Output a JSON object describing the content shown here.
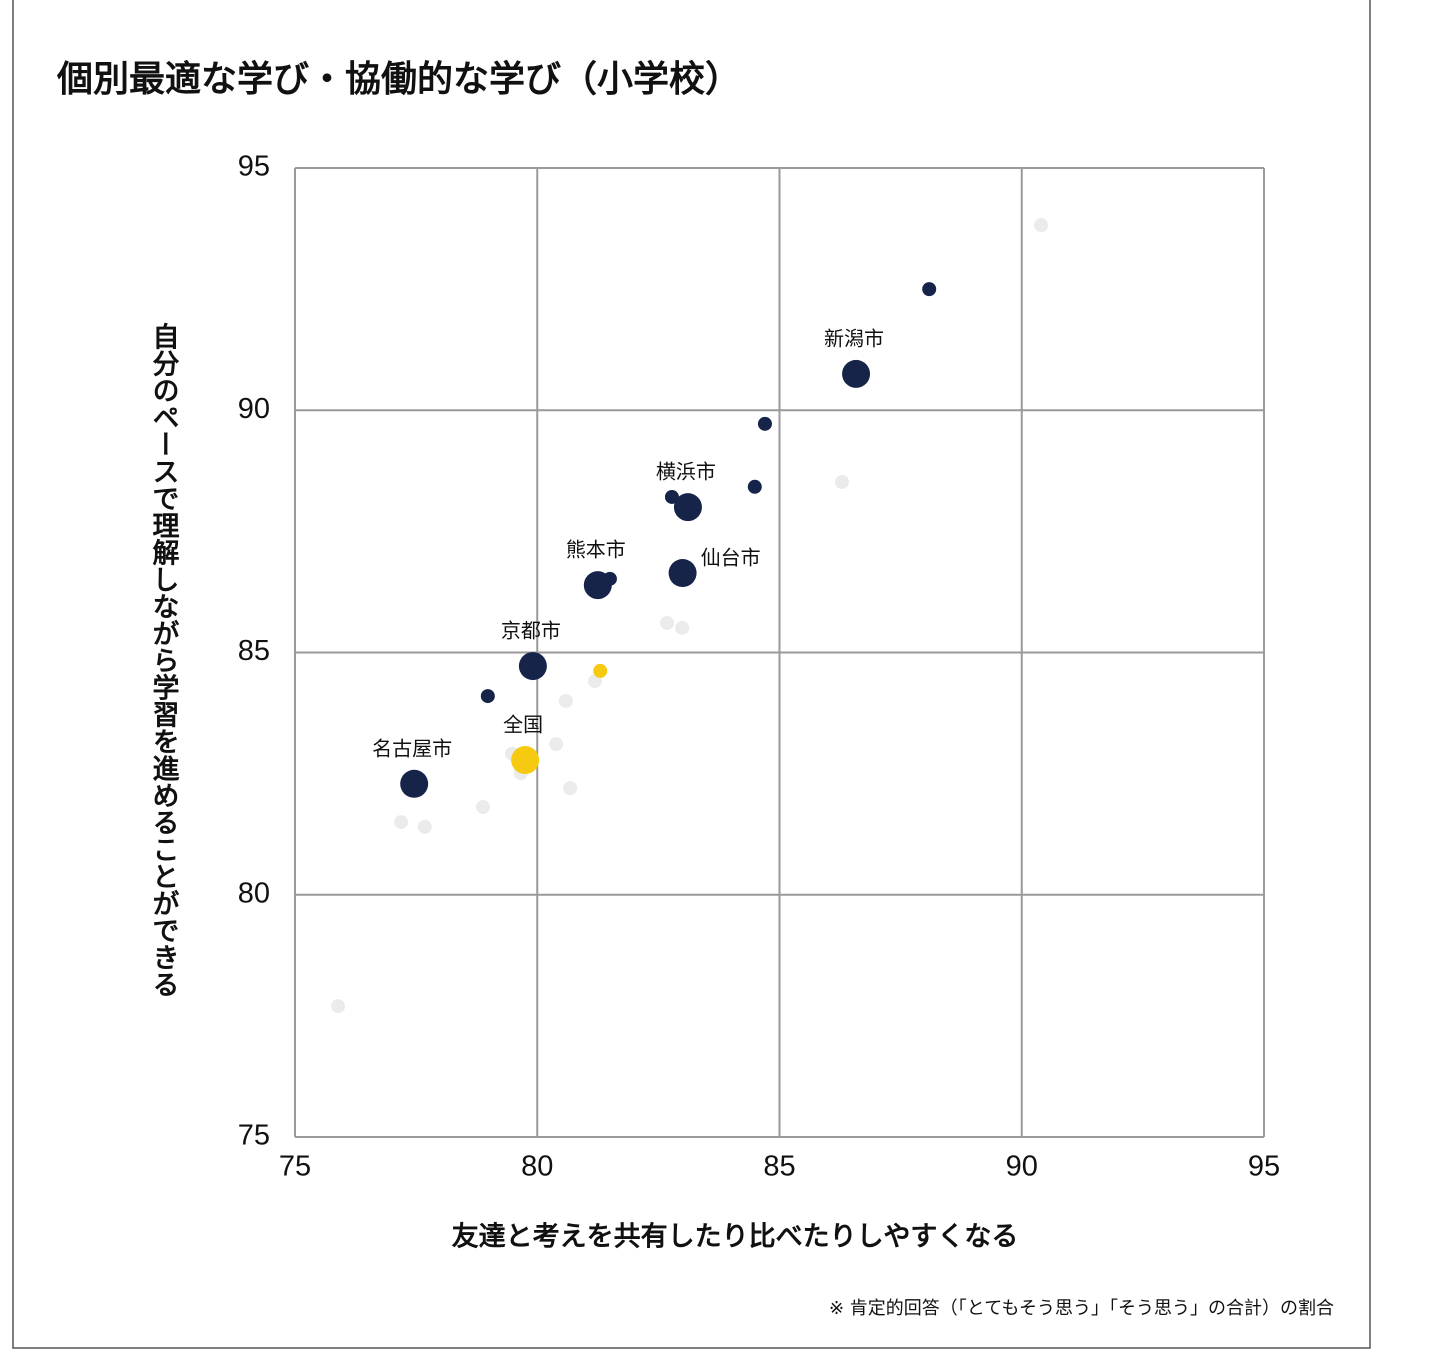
{
  "chart_data": {
    "type": "scatter",
    "title": "個別最適な学び・協働的な学び（小学校）",
    "x_label": "友達と考えを共有したり比べたりしやすくなる",
    "y_label": "自分のペースで理解しながら学習を進めることができる",
    "footnote": "※ 肯定的回答（「とてもそう思う」「そう思う」の合計）の割合",
    "xlim": [
      75,
      95
    ],
    "xticks": [
      75,
      80,
      85,
      90,
      95
    ],
    "ylim": [
      75,
      95
    ],
    "yticks": [
      75,
      80,
      85,
      90,
      95
    ],
    "grid": true,
    "series": [
      {
        "color": "#ebebeb",
        "radius": 7,
        "x": [
          90.4,
          86.29,
          82.68,
          82.99,
          80.59,
          81.19,
          80.39,
          79.48,
          79.66,
          80.68,
          78.88,
          77.19,
          77.68,
          75.89
        ],
        "values": [
          93.82,
          88.52,
          85.61,
          85.51,
          84.0,
          84.41,
          83.11,
          82.91,
          82.51,
          82.2,
          81.81,
          81.5,
          81.4,
          77.7
        ]
      },
      {
        "color": "#16244a",
        "radius": 7,
        "x": [
          88.09,
          84.7,
          84.49,
          82.78,
          81.5,
          78.98
        ],
        "values": [
          92.5,
          89.72,
          88.42,
          88.21,
          86.52,
          84.1
        ]
      },
      {
        "color": "#16244a",
        "radius": 14,
        "x": [
          86.58,
          83.11,
          83.0,
          81.25,
          79.91,
          77.46
        ],
        "values": [
          90.75,
          88.0,
          86.64,
          86.39,
          84.72,
          82.29
        ],
        "labels": [
          "新潟市",
          "横浜市",
          "仙台市",
          "熊本市",
          "京都市",
          "名古屋市"
        ]
      },
      {
        "color": "#f7ca12",
        "radius": 7,
        "x": [
          81.3
        ],
        "values": [
          84.62
        ]
      },
      {
        "color": "#f7ca12",
        "radius": 14,
        "x": [
          79.75
        ],
        "values": [
          82.78
        ],
        "labels": [
          "全国"
        ]
      }
    ]
  }
}
